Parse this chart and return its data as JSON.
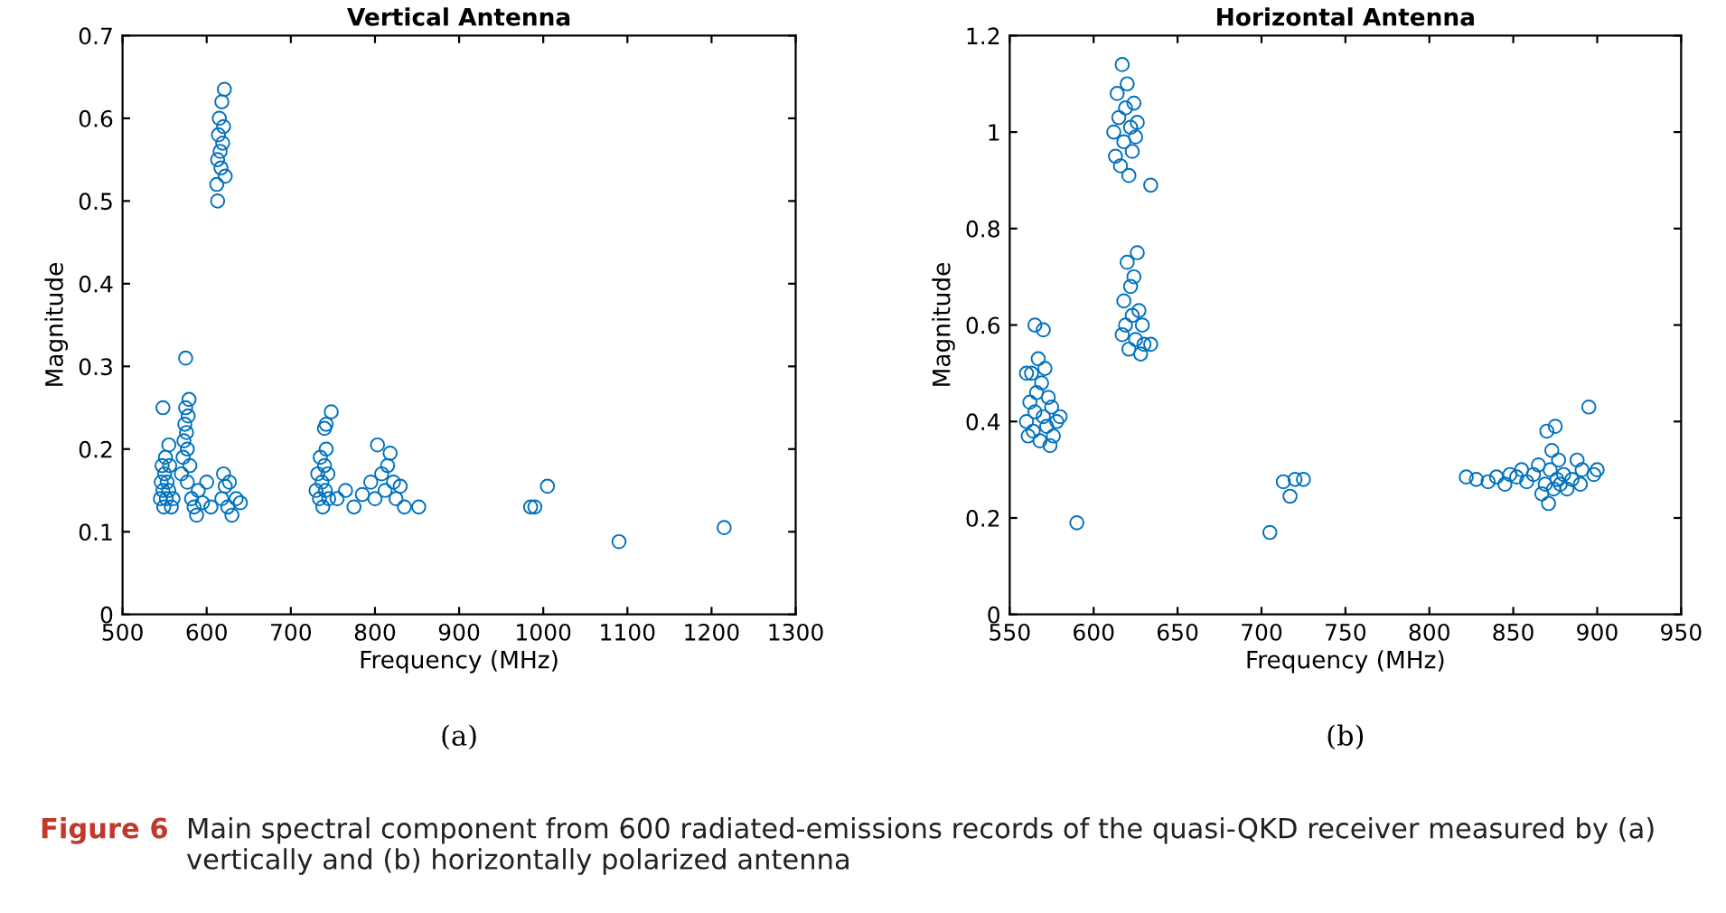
{
  "chart_data": [
    {
      "type": "scatter",
      "title": "Vertical Antenna",
      "xlabel": "Frequency (MHz)",
      "ylabel": "Magnitude",
      "xlim": [
        500,
        1300
      ],
      "xticks": [
        500,
        600,
        700,
        800,
        900,
        1000,
        1100,
        1200,
        1300
      ],
      "ylim": [
        0,
        0.7
      ],
      "yticks": [
        0,
        0.1,
        0.2,
        0.3,
        0.4,
        0.5,
        0.6,
        0.7
      ],
      "grid": false,
      "marker": "circle",
      "legend": false,
      "annotations": [
        "(a)",
        "Figure 6",
        "Main spectral component from 600 radiated-emissions records of the quasi-QKD receiver measured by (a) vertically and (b) horizontally polarized antenna"
      ],
      "series": [
        {
          "color": "#0072bd",
          "x": [
            545,
            546,
            547,
            548,
            549,
            550,
            551,
            552,
            553,
            555,
            556,
            558,
            560,
            548,
            555,
            570,
            572,
            573,
            574,
            575,
            576,
            577,
            578,
            579,
            580,
            575,
            577,
            582,
            585,
            588,
            590,
            595,
            600,
            605,
            612,
            613,
            614,
            615,
            616,
            617,
            618,
            619,
            620,
            621,
            613,
            622,
            618,
            620,
            622,
            625,
            627,
            630,
            635,
            640,
            730,
            732,
            734,
            735,
            737,
            738,
            740,
            741,
            742,
            744,
            745,
            740,
            742,
            748,
            755,
            765,
            775,
            785,
            795,
            800,
            803,
            808,
            812,
            815,
            818,
            822,
            825,
            830,
            835,
            852,
            985,
            990,
            1005,
            1090,
            1215
          ],
          "values": [
            0.14,
            0.16,
            0.18,
            0.15,
            0.13,
            0.17,
            0.19,
            0.14,
            0.16,
            0.15,
            0.18,
            0.13,
            0.14,
            0.25,
            0.205,
            0.17,
            0.19,
            0.21,
            0.23,
            0.25,
            0.22,
            0.2,
            0.24,
            0.26,
            0.18,
            0.31,
            0.16,
            0.14,
            0.13,
            0.12,
            0.15,
            0.135,
            0.16,
            0.13,
            0.52,
            0.55,
            0.58,
            0.6,
            0.56,
            0.54,
            0.62,
            0.57,
            0.59,
            0.635,
            0.5,
            0.53,
            0.14,
            0.17,
            0.155,
            0.13,
            0.16,
            0.12,
            0.14,
            0.135,
            0.15,
            0.17,
            0.14,
            0.19,
            0.16,
            0.13,
            0.18,
            0.15,
            0.2,
            0.17,
            0.14,
            0.225,
            0.23,
            0.245,
            0.14,
            0.15,
            0.13,
            0.145,
            0.16,
            0.14,
            0.205,
            0.17,
            0.15,
            0.18,
            0.195,
            0.16,
            0.14,
            0.155,
            0.13,
            0.13,
            0.13,
            0.13,
            0.155,
            0.088,
            0.105
          ]
        }
      ]
    },
    {
      "type": "scatter",
      "title": "Horizontal Antenna",
      "xlabel": "Frequency (MHz)",
      "ylabel": "Magnitude",
      "xlim": [
        550,
        950
      ],
      "xticks": [
        550,
        600,
        650,
        700,
        750,
        800,
        850,
        900,
        950
      ],
      "ylim": [
        0,
        1.2
      ],
      "yticks": [
        0,
        0.2,
        0.4,
        0.6,
        0.8,
        1,
        1.2
      ],
      "grid": false,
      "marker": "circle",
      "legend": false,
      "annotations": [
        "(b)"
      ],
      "series": [
        {
          "color": "#0072bd",
          "x": [
            560,
            561,
            562,
            563,
            564,
            565,
            566,
            567,
            568,
            569,
            570,
            571,
            572,
            573,
            574,
            575,
            576,
            578,
            580,
            565,
            570,
            560,
            590,
            612,
            613,
            614,
            615,
            616,
            617,
            618,
            619,
            620,
            621,
            622,
            623,
            624,
            625,
            626,
            634,
            617,
            618,
            619,
            620,
            621,
            622,
            623,
            624,
            625,
            626,
            627,
            628,
            629,
            630,
            634,
            705,
            713,
            717,
            720,
            725,
            822,
            828,
            835,
            840,
            845,
            848,
            852,
            855,
            858,
            862,
            865,
            867,
            869,
            870,
            871,
            872,
            873,
            874,
            875,
            876,
            877,
            878,
            880,
            882,
            885,
            888,
            890,
            891,
            895,
            898,
            900
          ],
          "values": [
            0.4,
            0.37,
            0.44,
            0.5,
            0.38,
            0.42,
            0.46,
            0.53,
            0.36,
            0.48,
            0.41,
            0.51,
            0.39,
            0.45,
            0.35,
            0.43,
            0.37,
            0.4,
            0.41,
            0.6,
            0.59,
            0.5,
            0.19,
            1.0,
            0.95,
            1.08,
            1.03,
            0.93,
            1.14,
            0.98,
            1.05,
            1.1,
            0.91,
            1.01,
            0.96,
            1.06,
            0.99,
            1.02,
            0.89,
            0.58,
            0.65,
            0.6,
            0.73,
            0.55,
            0.68,
            0.62,
            0.7,
            0.57,
            0.75,
            0.63,
            0.54,
            0.6,
            0.56,
            0.56,
            0.17,
            0.275,
            0.245,
            0.28,
            0.28,
            0.285,
            0.28,
            0.275,
            0.285,
            0.27,
            0.29,
            0.285,
            0.3,
            0.275,
            0.29,
            0.31,
            0.25,
            0.27,
            0.38,
            0.23,
            0.3,
            0.34,
            0.26,
            0.39,
            0.28,
            0.32,
            0.27,
            0.29,
            0.26,
            0.28,
            0.32,
            0.27,
            0.3,
            0.43,
            0.29,
            0.3
          ]
        }
      ]
    }
  ]
}
